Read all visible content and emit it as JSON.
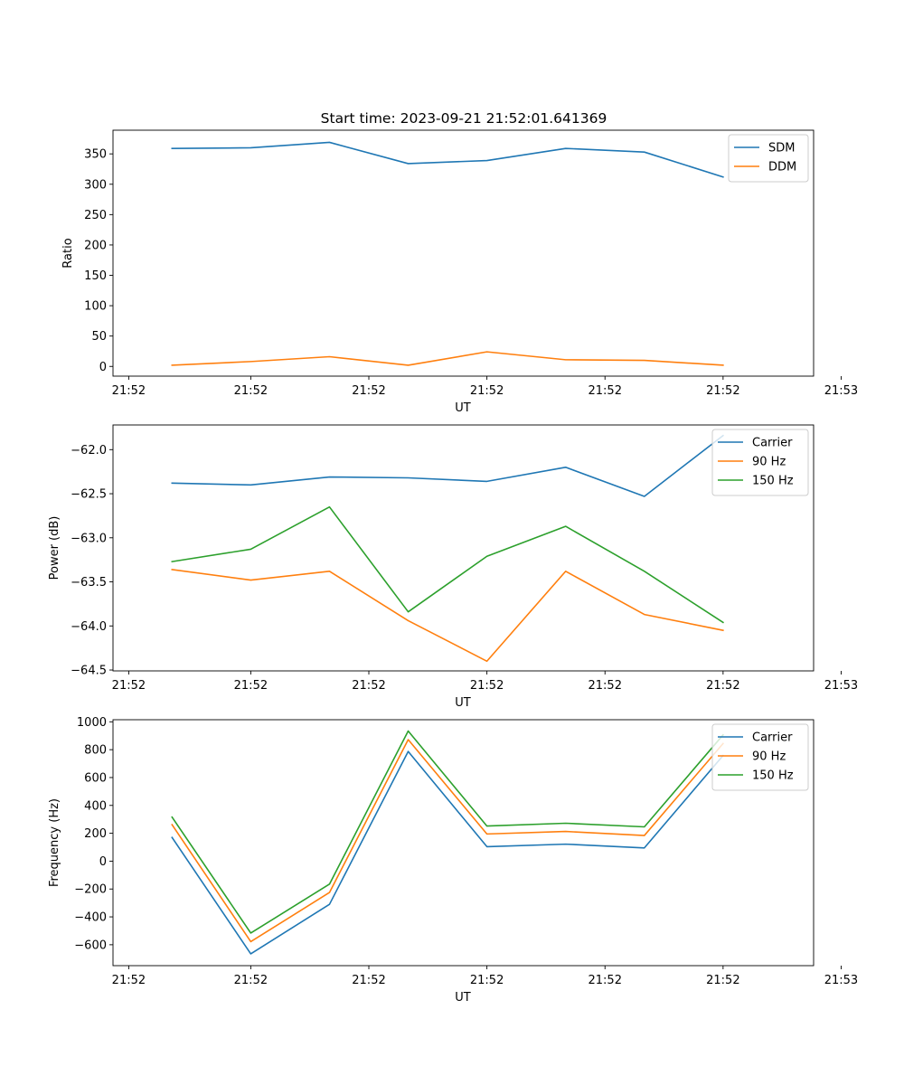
{
  "figure": {
    "title": "Start time: 2023-09-21 21:52:01.641369"
  },
  "colors": {
    "blue": "#1f77b4",
    "orange": "#ff7f0e",
    "green": "#2ca02c"
  },
  "chart_data": [
    {
      "type": "line",
      "title": "Start time: 2023-09-21 21:52:01.641369",
      "xlabel": "UT",
      "ylabel": "Ratio",
      "x": [
        1,
        2,
        3,
        4,
        5,
        6,
        7,
        8
      ],
      "xlim": [
        0.25,
        9.15
      ],
      "x_ticks": [
        0.45,
        2.0,
        3.5,
        5.0,
        6.5,
        8.0,
        9.5
      ],
      "x_tick_labels": [
        "21:52",
        "21:52",
        "21:52",
        "21:52",
        "21:52",
        "21:52",
        "21:53"
      ],
      "ylim": [
        -16,
        389
      ],
      "y_ticks": [
        0,
        50,
        100,
        150,
        200,
        250,
        300,
        350
      ],
      "y_tick_labels": [
        "0",
        "50",
        "100",
        "150",
        "200",
        "250",
        "300",
        "350"
      ],
      "legend_position": "top-right",
      "series": [
        {
          "name": "SDM",
          "color": "#1f77b4",
          "values": [
            359,
            360,
            369,
            334,
            339,
            359,
            353,
            312
          ]
        },
        {
          "name": "DDM",
          "color": "#ff7f0e",
          "values": [
            2,
            8,
            16,
            2,
            24,
            11,
            10,
            2
          ]
        }
      ]
    },
    {
      "type": "line",
      "title": "",
      "xlabel": "UT",
      "ylabel": "Power (dB)",
      "x": [
        1,
        2,
        3,
        4,
        5,
        6,
        7,
        8
      ],
      "xlim": [
        0.25,
        9.15
      ],
      "x_ticks": [
        0.45,
        2.0,
        3.5,
        5.0,
        6.5,
        8.0,
        9.5
      ],
      "x_tick_labels": [
        "21:52",
        "21:52",
        "21:52",
        "21:52",
        "21:52",
        "21:52",
        "21:53"
      ],
      "ylim": [
        -64.51,
        -61.72
      ],
      "y_ticks": [
        -64.5,
        -64.0,
        -63.5,
        -63.0,
        -62.5,
        -62.0
      ],
      "y_tick_labels": [
        "−64.5",
        "−64.0",
        "−63.5",
        "−63.0",
        "−62.5",
        "−62.0"
      ],
      "legend_position": "top-right",
      "series": [
        {
          "name": "Carrier",
          "color": "#1f77b4",
          "values": [
            -62.38,
            -62.4,
            -62.31,
            -62.32,
            -62.36,
            -62.2,
            -62.53,
            -61.84
          ]
        },
        {
          "name": "90 Hz",
          "color": "#ff7f0e",
          "values": [
            -63.36,
            -63.48,
            -63.38,
            -63.94,
            -64.4,
            -63.38,
            -63.87,
            -64.05
          ]
        },
        {
          "name": "150 Hz",
          "color": "#2ca02c",
          "values": [
            -63.27,
            -63.13,
            -62.65,
            -63.84,
            -63.21,
            -62.87,
            -63.38,
            -63.96
          ]
        }
      ]
    },
    {
      "type": "line",
      "title": "",
      "xlabel": "UT",
      "ylabel": "Frequency (Hz)",
      "x": [
        1,
        2,
        3,
        4,
        5,
        6,
        7,
        8
      ],
      "xlim": [
        0.25,
        9.15
      ],
      "x_ticks": [
        0.45,
        2.0,
        3.5,
        5.0,
        6.5,
        8.0,
        9.5
      ],
      "x_tick_labels": [
        "21:52",
        "21:52",
        "21:52",
        "21:52",
        "21:52",
        "21:52",
        "21:53"
      ],
      "ylim": [
        -750,
        1015
      ],
      "y_ticks": [
        -600,
        -400,
        -200,
        0,
        200,
        400,
        600,
        800,
        1000
      ],
      "y_tick_labels": [
        "−600",
        "−400",
        "−200",
        "0",
        "200",
        "400",
        "600",
        "800",
        "1000"
      ],
      "legend_position": "top-right",
      "series": [
        {
          "name": "Carrier",
          "color": "#1f77b4",
          "values": [
            170,
            -665,
            -310,
            787,
            104,
            122,
            95,
            758
          ]
        },
        {
          "name": "90 Hz",
          "color": "#ff7f0e",
          "values": [
            262,
            -578,
            -225,
            872,
            195,
            213,
            184,
            844
          ]
        },
        {
          "name": "150 Hz",
          "color": "#2ca02c",
          "values": [
            316,
            -516,
            -165,
            934,
            252,
            272,
            246,
            906
          ]
        }
      ]
    }
  ]
}
